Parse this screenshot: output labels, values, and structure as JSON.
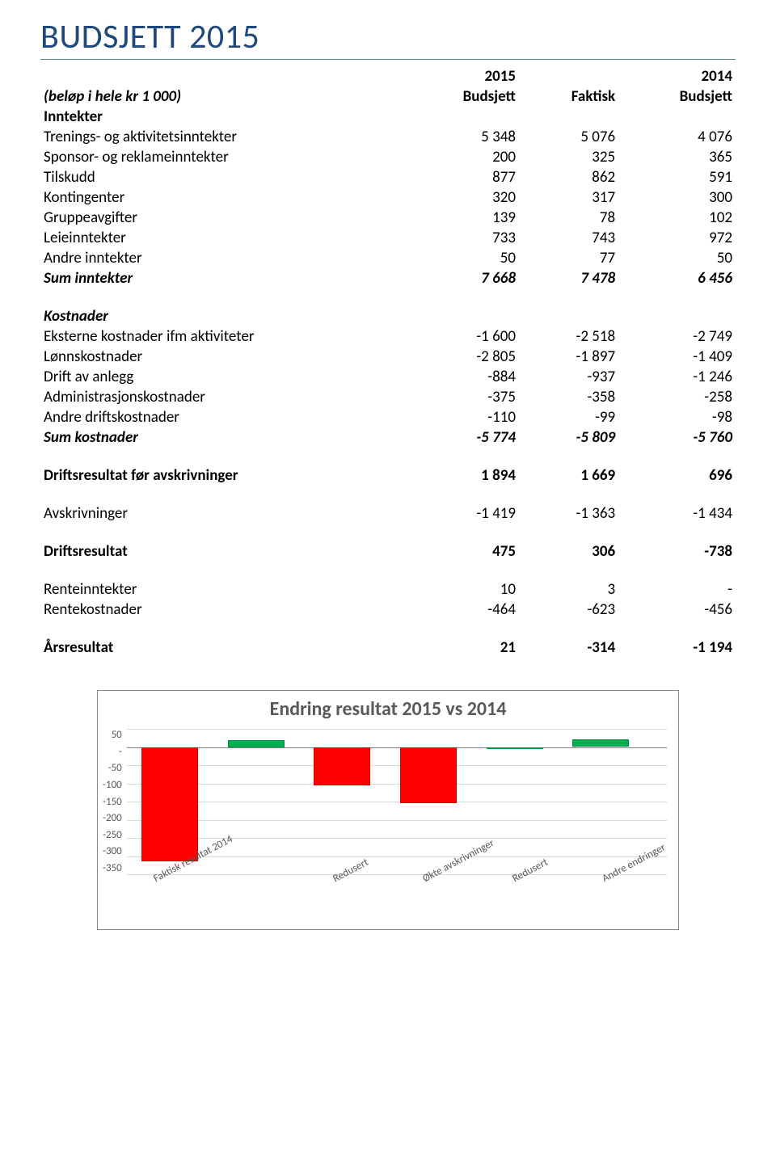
{
  "title": "BUDSJETT 2015",
  "years": {
    "c1": "2015",
    "c2": "2014"
  },
  "headers": {
    "note": "(beløp i hele kr 1 000)",
    "c1": "Budsjett",
    "c2": "Faktisk",
    "c3": "Budsjett"
  },
  "sections": {
    "inntekter": {
      "head": "Inntekter",
      "rows": [
        {
          "label": "Trenings- og aktivitetsinntekter",
          "c1": "5 348",
          "c2": "5 076",
          "c3": "4 076"
        },
        {
          "label": "Sponsor- og reklameinntekter",
          "c1": "200",
          "c2": "325",
          "c3": "365"
        },
        {
          "label": "Tilskudd",
          "c1": "877",
          "c2": "862",
          "c3": "591"
        },
        {
          "label": "Kontingenter",
          "c1": "320",
          "c2": "317",
          "c3": "300"
        },
        {
          "label": "Gruppeavgifter",
          "c1": "139",
          "c2": "78",
          "c3": "102"
        },
        {
          "label": "Leieinntekter",
          "c1": "733",
          "c2": "743",
          "c3": "972"
        },
        {
          "label": "Andre inntekter",
          "c1": "50",
          "c2": "77",
          "c3": "50"
        }
      ],
      "sum": {
        "label": "Sum inntekter",
        "c1": "7 668",
        "c2": "7 478",
        "c3": "6 456"
      }
    },
    "kostnader": {
      "head": "Kostnader",
      "rows": [
        {
          "label": "Eksterne kostnader ifm aktiviteter",
          "c1": "-1 600",
          "c2": "-2 518",
          "c3": "-2 749"
        },
        {
          "label": "Lønnskostnader",
          "c1": "-2 805",
          "c2": "-1 897",
          "c3": "-1 409"
        },
        {
          "label": "Drift av anlegg",
          "c1": "-884",
          "c2": "-937",
          "c3": "-1 246"
        },
        {
          "label": "Administrasjonskostnader",
          "c1": "-375",
          "c2": "-358",
          "c3": "-258"
        },
        {
          "label": "Andre driftskostnader",
          "c1": "-110",
          "c2": "-99",
          "c3": "-98"
        }
      ],
      "sum": {
        "label": "Sum kostnader",
        "c1": "-5 774",
        "c2": "-5 809",
        "c3": "-5 760"
      }
    },
    "drift_for_avskr": {
      "label": "Driftsresultat før avskrivninger",
      "c1": "1 894",
      "c2": "1 669",
      "c3": "696"
    },
    "avskrivninger": {
      "label": "Avskrivninger",
      "c1": "-1 419",
      "c2": "-1 363",
      "c3": "-1 434"
    },
    "driftsresultat": {
      "label": "Driftsresultat",
      "c1": "475",
      "c2": "306",
      "c3": "-738"
    },
    "renteinntekter": {
      "label": "Renteinntekter",
      "c1": "10",
      "c2": "3",
      "c3": "-"
    },
    "rentekostnader": {
      "label": "Rentekostnader",
      "c1": "-464",
      "c2": "-623",
      "c3": "-456"
    },
    "arsresultat": {
      "label": "Årsresultat",
      "c1": "21",
      "c2": "-314",
      "c3": "-1 194"
    }
  },
  "chart": {
    "title": "Endring resultat 2015 vs 2014",
    "ymin": -350,
    "ymax": 50,
    "yticks": [
      "50",
      "-",
      "-50",
      "-100",
      "-150",
      "-200",
      "-250",
      "-300",
      "-350"
    ],
    "grid_color": "#d9d9d9",
    "axis_color": "#808080",
    "bar_colors": {
      "red": "#ff0000",
      "green": "#00b050"
    },
    "bars": [
      {
        "label": "Faktisk resultat 2014",
        "value": -314,
        "color": "red"
      },
      {
        "label": "",
        "value": 20,
        "color": "green"
      },
      {
        "label": "Redusert",
        "value": -105,
        "color": "red"
      },
      {
        "label": "Økte avskrivninger",
        "value": -155,
        "color": "red"
      },
      {
        "label": "Redusert",
        "value": 0,
        "color": "green"
      },
      {
        "label": "Andre endringer",
        "value": 21,
        "color": "green"
      }
    ]
  }
}
